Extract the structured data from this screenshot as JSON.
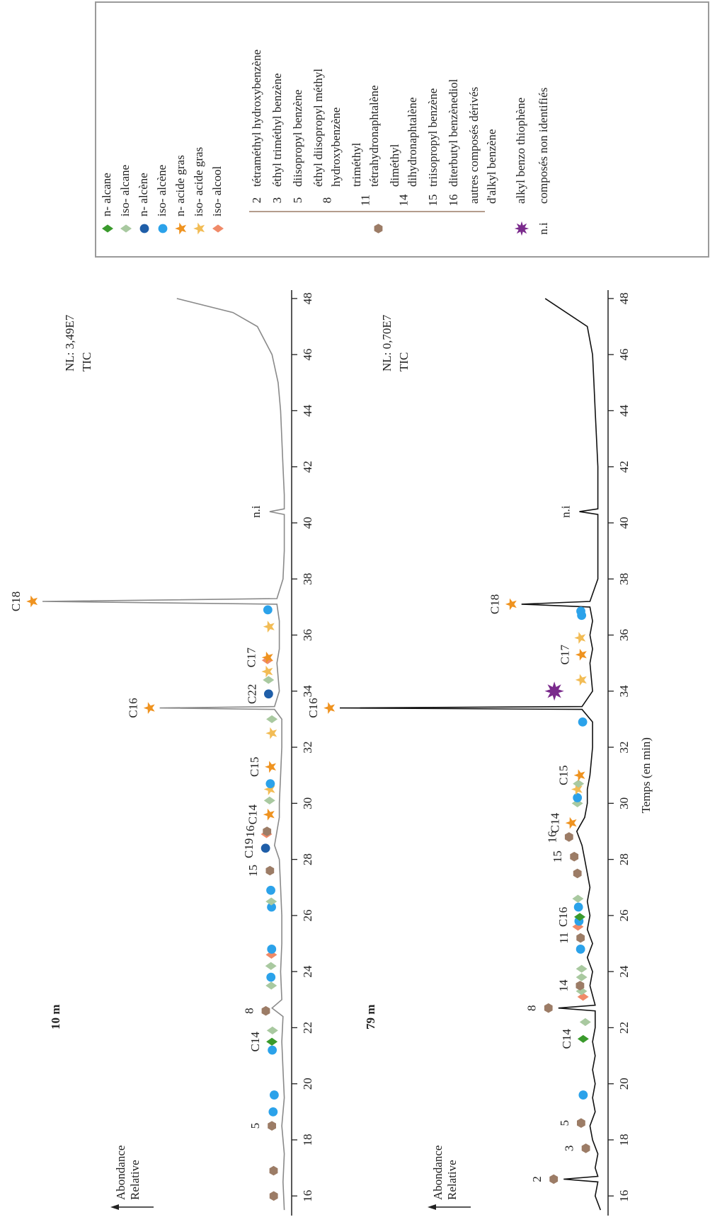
{
  "chart_data": [
    {
      "type": "line",
      "title": "10 m",
      "note": "NL: 3,49E7",
      "trace_label": "TIC",
      "y_label": [
        "Abondance",
        "Relative"
      ],
      "color": "#8a8a8a",
      "xlim": [
        15.3,
        48.3
      ],
      "xticks": [
        16,
        18,
        20,
        22,
        24,
        26,
        28,
        30,
        32,
        34,
        36,
        38,
        40,
        42,
        44,
        46,
        48
      ],
      "ylim": [
        0,
        100
      ],
      "x": [
        15.5,
        16.5,
        17.5,
        18.5,
        19.5,
        20.5,
        21.5,
        22.4,
        22.7,
        23.0,
        24.0,
        25.0,
        26.0,
        27.0,
        28.0,
        28.5,
        29.0,
        29.5,
        30.0,
        31.0,
        32.0,
        33.0,
        33.35,
        33.4,
        33.45,
        34.0,
        35.0,
        35.5,
        36.5,
        37.1,
        37.2,
        37.3,
        38,
        39,
        40.3,
        40.4,
        40.5,
        41,
        42,
        43,
        44,
        45,
        46,
        47,
        47.5,
        48
      ],
      "values": [
        1,
        1.5,
        1,
        2,
        1,
        1.5,
        2,
        1.5,
        6,
        2,
        2.5,
        2,
        2,
        2.5,
        3,
        5,
        4,
        3,
        3,
        2.5,
        2,
        2,
        5,
        52,
        5,
        3,
        4,
        3,
        3,
        4,
        100,
        4,
        1.5,
        1,
        1,
        7,
        1,
        1,
        1.5,
        2,
        2.5,
        3.5,
        6,
        12,
        22,
        45
      ],
      "markers": [
        {
          "class": 7,
          "x": 16.0
        },
        {
          "class": 7,
          "x": 16.9
        },
        {
          "class": 7,
          "x": 18.5,
          "label": "5"
        },
        {
          "class": 3,
          "x": 19.0
        },
        {
          "class": 3,
          "x": 19.6
        },
        {
          "class": 3,
          "x": 21.2
        },
        {
          "class": 0,
          "x": 21.5,
          "label": "C14"
        },
        {
          "class": 1,
          "x": 21.9
        },
        {
          "class": 7,
          "x": 22.6,
          "label": "8"
        },
        {
          "class": 1,
          "x": 23.5
        },
        {
          "class": 3,
          "x": 23.8
        },
        {
          "class": 1,
          "x": 24.2
        },
        {
          "class": 6,
          "x": 24.6
        },
        {
          "class": 3,
          "x": 24.8
        },
        {
          "class": 3,
          "x": 26.3
        },
        {
          "class": 1,
          "x": 26.5
        },
        {
          "class": 3,
          "x": 26.9
        },
        {
          "class": 7,
          "x": 27.6,
          "label": "15"
        },
        {
          "class": 2,
          "x": 28.4,
          "label": "C19"
        },
        {
          "class": 6,
          "x": 28.9
        },
        {
          "class": 7,
          "x": 29.0,
          "label": "16"
        },
        {
          "class": 4,
          "x": 29.6,
          "label": "C14"
        },
        {
          "class": 1,
          "x": 30.1
        },
        {
          "class": 5,
          "x": 30.5
        },
        {
          "class": 3,
          "x": 30.7
        },
        {
          "class": 4,
          "x": 31.3,
          "label": "C15"
        },
        {
          "class": 5,
          "x": 32.5
        },
        {
          "class": 1,
          "x": 33.0
        },
        {
          "class": 4,
          "x": 33.4,
          "label": "C16"
        },
        {
          "class": 2,
          "x": 33.9,
          "label": "C22"
        },
        {
          "class": 1,
          "x": 34.4
        },
        {
          "class": 5,
          "x": 34.7
        },
        {
          "class": 6,
          "x": 35.1
        },
        {
          "class": 4,
          "x": 35.2,
          "label": "C17"
        },
        {
          "class": 5,
          "x": 36.3
        },
        {
          "class": 3,
          "x": 36.9
        },
        {
          "class": 4,
          "x": 37.2,
          "label": "C18"
        },
        {
          "class": 9,
          "x": 40.4,
          "label": "n.i"
        }
      ]
    },
    {
      "type": "line",
      "title": "79 m",
      "note": "NL: 0,70E7",
      "trace_label": "TIC",
      "y_label": [
        "Abondance",
        "Relative"
      ],
      "x_label": "Temps (en min)",
      "color": "#111111",
      "xlim": [
        15.3,
        48.3
      ],
      "xticks": [
        16,
        18,
        20,
        22,
        24,
        26,
        28,
        30,
        32,
        34,
        36,
        38,
        40,
        42,
        44,
        46,
        48
      ],
      "ylim": [
        0,
        100
      ],
      "x": [
        15.5,
        16,
        16.5,
        16.6,
        16.7,
        17,
        17.5,
        18,
        18.5,
        19,
        19.5,
        20,
        20.5,
        21,
        21.5,
        22,
        22.6,
        22.7,
        22.8,
        23.5,
        24,
        24.5,
        25,
        25.5,
        26,
        26.5,
        27,
        27.5,
        28,
        28.5,
        29,
        29.5,
        30,
        30.5,
        31,
        32,
        32.9,
        33.35,
        33.4,
        33.45,
        34,
        35,
        35.5,
        36,
        36.5,
        37.0,
        37.1,
        37.2,
        38,
        39,
        40,
        40.3,
        40.4,
        40.5,
        41,
        42,
        43,
        44,
        45,
        46,
        47,
        48
      ],
      "values": [
        1,
        3,
        2,
        15,
        2,
        3,
        2,
        4,
        5,
        3,
        4,
        3,
        4,
        3,
        4,
        3,
        3,
        17,
        3,
        5,
        4,
        6,
        4,
        6,
        5,
        6,
        5,
        6,
        7,
        8,
        10,
        7,
        6,
        6,
        5,
        4,
        4,
        8,
        100,
        8,
        4,
        5,
        4,
        5,
        4,
        5,
        31,
        5,
        2,
        2,
        2,
        2,
        9,
        2,
        2,
        2,
        2.5,
        3,
        3.5,
        4,
        6,
        22
      ],
      "markers": [
        {
          "class": 7,
          "x": 16.6,
          "label": "2"
        },
        {
          "class": 7,
          "x": 17.7,
          "label": "3"
        },
        {
          "class": 7,
          "x": 18.6,
          "label": "5"
        },
        {
          "class": 3,
          "x": 19.6
        },
        {
          "class": 0,
          "x": 21.6,
          "label": "C14"
        },
        {
          "class": 1,
          "x": 22.2
        },
        {
          "class": 7,
          "x": 22.7,
          "label": "8"
        },
        {
          "class": 6,
          "x": 23.1
        },
        {
          "class": 1,
          "x": 23.3
        },
        {
          "class": 7,
          "x": 23.5,
          "label": "14"
        },
        {
          "class": 1,
          "x": 23.8
        },
        {
          "class": 1,
          "x": 24.1
        },
        {
          "class": 3,
          "x": 24.8
        },
        {
          "class": 7,
          "x": 25.2,
          "label": "11"
        },
        {
          "class": 6,
          "x": 25.6
        },
        {
          "class": 3,
          "x": 25.8
        },
        {
          "class": 0,
          "x": 25.95,
          "label": "C16"
        },
        {
          "class": 3,
          "x": 26.3
        },
        {
          "class": 1,
          "x": 26.6
        },
        {
          "class": 7,
          "x": 27.5
        },
        {
          "class": 7,
          "x": 28.1,
          "label": "15"
        },
        {
          "class": 7,
          "x": 28.8,
          "label": "16"
        },
        {
          "class": 4,
          "x": 29.3,
          "label": "C14"
        },
        {
          "class": 1,
          "x": 30.0
        },
        {
          "class": 3,
          "x": 30.2
        },
        {
          "class": 5,
          "x": 30.5
        },
        {
          "class": 1,
          "x": 30.7
        },
        {
          "class": 4,
          "x": 31.0,
          "label": "C15"
        },
        {
          "class": 3,
          "x": 32.9
        },
        {
          "class": 4,
          "x": 33.4,
          "label": "C16"
        },
        {
          "class": 8,
          "x": 34.0
        },
        {
          "class": 5,
          "x": 34.4
        },
        {
          "class": 4,
          "x": 35.3,
          "label": "C17"
        },
        {
          "class": 5,
          "x": 35.9
        },
        {
          "class": 3,
          "x": 36.7
        },
        {
          "class": 3,
          "x": 36.85
        },
        {
          "class": 4,
          "x": 37.1,
          "label": "C18"
        },
        {
          "class": 9,
          "x": 40.4,
          "label": "n.i"
        }
      ]
    }
  ],
  "legend": {
    "items": [
      {
        "symbol": "diamond",
        "color": "#3a9a2c",
        "label": [
          "n- alcane"
        ]
      },
      {
        "symbol": "diamond",
        "color": "#a9c9a0",
        "label": [
          "iso- alcane"
        ]
      },
      {
        "symbol": "circle",
        "color": "#1f5ea8",
        "label": [
          "n- alcène"
        ]
      },
      {
        "symbol": "circle",
        "color": "#2ba2ea",
        "label": [
          "iso- alcène"
        ]
      },
      {
        "symbol": "star",
        "color": "#ef9320",
        "label": [
          "n- acide gras"
        ]
      },
      {
        "symbol": "star",
        "color": "#f2bc55",
        "label": [
          "iso- acide gras"
        ]
      },
      {
        "symbol": "diamond",
        "color": "#f08a68",
        "label": [
          "iso- alcool"
        ]
      },
      {
        "symbol": "hexagon",
        "color": "#9c7c66",
        "entries": [
          {
            "number": 2,
            "label": [
              "tétraméthyl hydroxybenzène"
            ]
          },
          {
            "number": 3,
            "label": [
              "éthyl triméthyl benzène"
            ]
          },
          {
            "number": 5,
            "label": [
              "diisopropyl benzène"
            ]
          },
          {
            "number": 8,
            "label": [
              "éthyl diisopropyl méthyl",
              "hydroxybenzène"
            ]
          },
          {
            "number": 11,
            "label": [
              "triméthyl",
              "tétrahydronaphtalène"
            ]
          },
          {
            "number": 14,
            "label": [
              "diméthyl",
              "dihydronaphtalène"
            ]
          },
          {
            "number": 15,
            "label": [
              "triisopropyl benzène"
            ]
          },
          {
            "number": 16,
            "label": [
              "diterbutyl benzènediol"
            ]
          },
          {
            "label": [
              "autres composés dérivés",
              "d'alkyl benzène"
            ]
          }
        ]
      },
      {
        "symbol": "star6",
        "color": "#7a2a8c",
        "label": [
          "alkyl benzo thiophène"
        ]
      },
      {
        "symbol": "text",
        "color": "#d42323",
        "symbol_text": "n.i",
        "label": [
          "composés non identifiés"
        ]
      }
    ]
  }
}
